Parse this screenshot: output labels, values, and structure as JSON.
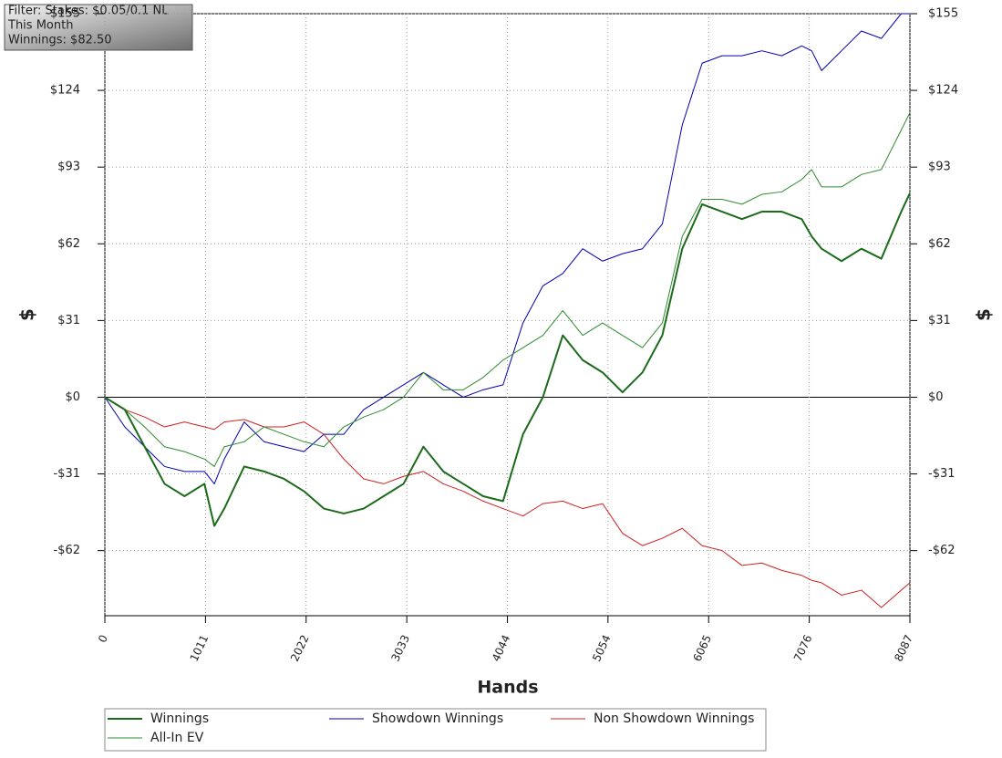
{
  "chart_data": {
    "type": "line",
    "annotations": [
      "Filter: Stakes: $0.05/0.1 NL",
      "This Month",
      "Winnings: $82.50"
    ],
    "x_label": "Hands",
    "y_label": "$",
    "y2_label": "$",
    "x": [
      0,
      200,
      400,
      600,
      800,
      1000,
      1100,
      1200,
      1400,
      1600,
      1800,
      2000,
      2200,
      2400,
      2600,
      2800,
      3000,
      3200,
      3400,
      3600,
      3800,
      4000,
      4200,
      4400,
      4600,
      4800,
      5000,
      5200,
      5400,
      5600,
      5800,
      6000,
      6200,
      6400,
      6600,
      6800,
      7000,
      7100,
      7200,
      7400,
      7600,
      7800,
      8000,
      8087
    ],
    "series": [
      {
        "name": "Winnings",
        "color": "#1b6b1b",
        "width": 2,
        "values": [
          0,
          -5,
          -20,
          -35,
          -40,
          -35,
          -52,
          -45,
          -28,
          -30,
          -33,
          -38,
          -45,
          -47,
          -45,
          -40,
          -35,
          -20,
          -30,
          -35,
          -40,
          -42,
          -15,
          0,
          25,
          15,
          10,
          2,
          10,
          25,
          60,
          78,
          75,
          72,
          75,
          75,
          72,
          65,
          60,
          55,
          60,
          56,
          75,
          82.5
        ]
      },
      {
        "name": "Showdown Winnings",
        "color": "#0000b0",
        "width": 1,
        "values": [
          0,
          -12,
          -20,
          -28,
          -30,
          -30,
          -35,
          -25,
          -10,
          -18,
          -20,
          -22,
          -15,
          -15,
          -5,
          0,
          5,
          10,
          5,
          0,
          3,
          5,
          30,
          45,
          50,
          60,
          55,
          58,
          60,
          70,
          110,
          135,
          138,
          138,
          140,
          138,
          142,
          140,
          132,
          140,
          148,
          145,
          155,
          155
        ]
      },
      {
        "name": "Non Showdown Winnings",
        "color": "#d02020",
        "width": 1,
        "values": [
          0,
          -5,
          -8,
          -12,
          -10,
          -12,
          -13,
          -10,
          -9,
          -12,
          -12,
          -10,
          -15,
          -25,
          -33,
          -35,
          -32,
          -30,
          -35,
          -38,
          -42,
          -45,
          -48,
          -43,
          -42,
          -45,
          -43,
          -55,
          -60,
          -57,
          -53,
          -60,
          -62,
          -68,
          -67,
          -70,
          -72,
          -74,
          -75,
          -80,
          -78,
          -85,
          -78,
          -75
        ]
      },
      {
        "name": "All-In EV",
        "color": "#2e8b2e",
        "width": 1,
        "values": [
          0,
          -5,
          -12,
          -20,
          -22,
          -25,
          -28,
          -20,
          -18,
          -12,
          -15,
          -18,
          -20,
          -12,
          -8,
          -5,
          0,
          10,
          3,
          3,
          8,
          15,
          20,
          25,
          35,
          25,
          30,
          25,
          20,
          30,
          65,
          80,
          80,
          78,
          82,
          83,
          88,
          92,
          85,
          85,
          90,
          92,
          108,
          115
        ]
      }
    ],
    "xlim": [
      0,
      8087
    ],
    "xticks": [
      0,
      1011,
      2022,
      3033,
      4044,
      5054,
      6065,
      7076,
      8087
    ],
    "ylim": [
      -88.3,
      155
    ],
    "yticks": [
      {
        "value": 155,
        "label": "$155"
      },
      {
        "value": 124,
        "label": "$124"
      },
      {
        "value": 93,
        "label": "$93"
      },
      {
        "value": 62,
        "label": "$62"
      },
      {
        "value": 31,
        "label": "$31"
      },
      {
        "value": 0,
        "label": "$0"
      },
      {
        "value": -31,
        "label": "-$31"
      },
      {
        "value": -62,
        "label": "-$62"
      }
    ],
    "grid": true
  }
}
